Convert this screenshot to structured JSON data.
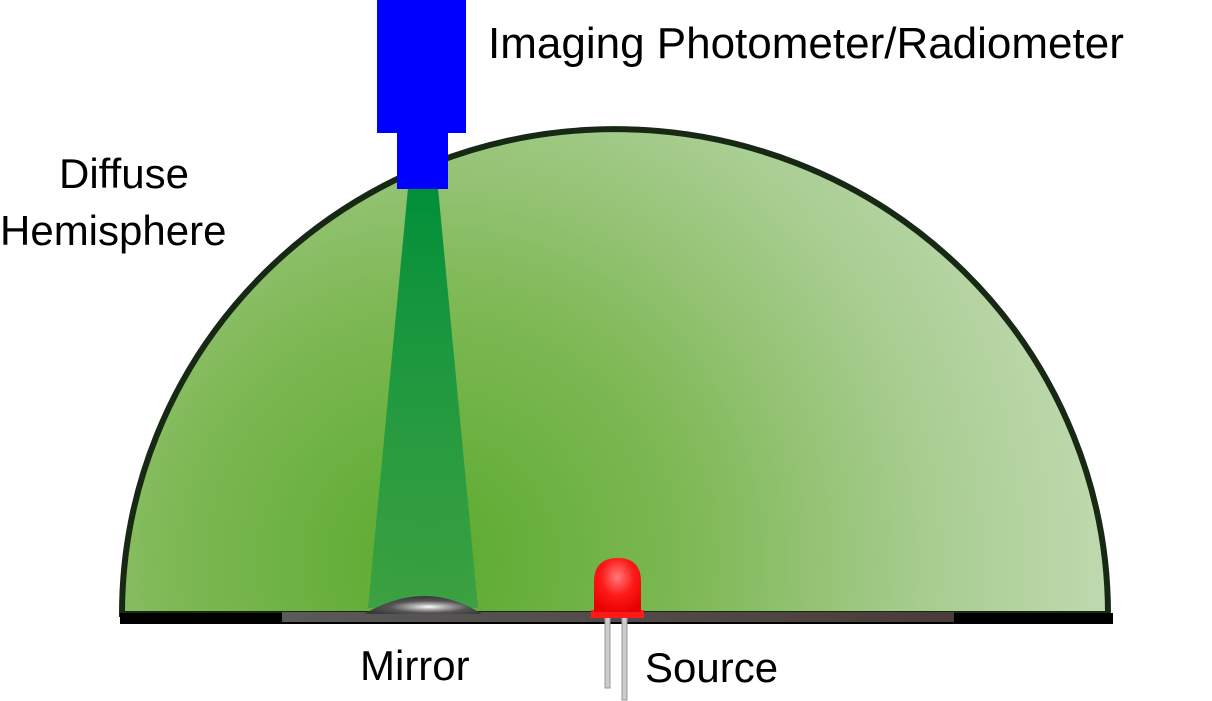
{
  "labels": {
    "instrument": "Imaging Photometer/Radiometer",
    "hemisphere_line1": "Diffuse",
    "hemisphere_line2": "Hemisphere",
    "mirror": "Mirror",
    "source": "Source"
  },
  "colors": {
    "instrument": "#0000ff",
    "hemisphere_fill_dark": "#5aaa2e",
    "hemisphere_fill_light": "#c5dcb6",
    "hemisphere_outline": "#172914",
    "beam": "#008f38",
    "base": "#000000",
    "base_plate": "#4a3c38",
    "mirror": "#555555",
    "led": "#ff1a1a",
    "leads": "#cccccc"
  },
  "icons": {
    "instrument": "camera-icon",
    "source": "led-icon",
    "mirror": "mirror-icon"
  }
}
